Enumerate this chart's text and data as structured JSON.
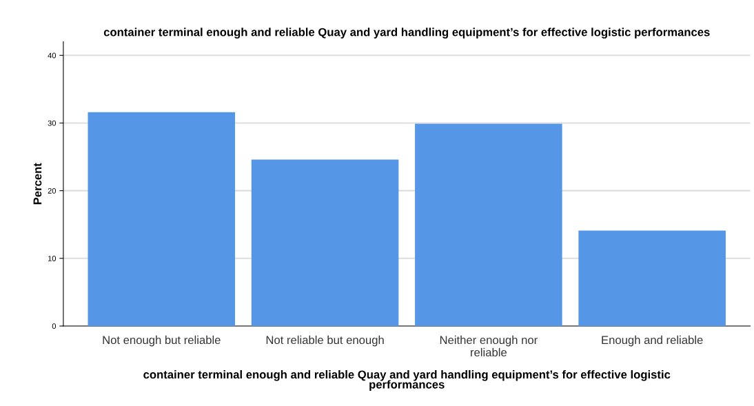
{
  "chart_data": {
    "type": "bar",
    "title": "container terminal enough and reliable Quay and yard handling equipment’s for effective logistic performances",
    "xlabel": "container terminal enough and reliable Quay and yard handling equipment’s for effective logistic performances",
    "ylabel": "Percent",
    "categories": [
      "Not enough but reliable",
      "Not reliable but enough",
      "Neither enough nor reliable",
      "Enough and reliable"
    ],
    "values": [
      31.6,
      24.6,
      29.9,
      14.1
    ],
    "color": "#5596e6",
    "ylim": [
      0,
      42
    ],
    "yticks": [
      0,
      10,
      20,
      30,
      40
    ],
    "grid": "y"
  }
}
